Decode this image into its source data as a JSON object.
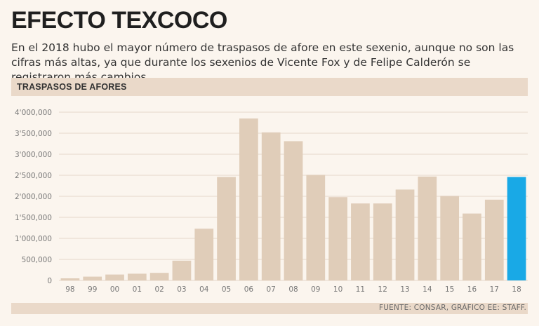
{
  "header": {
    "title": "EFECTO TEXCOCO",
    "subtitle": "En el 2018 hubo el mayor número de traspasos de afore en este sexenio, aunque no son las cifras más altas, ya que durante los sexenios de Vicente Fox y de Felipe Calderón se registraron más cambios."
  },
  "section": {
    "label": "TRASPASOS DE AFORES"
  },
  "footer": {
    "source": "FUENTE: CONSAR, GRÁFICO EE: STAFF."
  },
  "colors": {
    "bar": "#e0cdb9",
    "highlight": "#19a9e6",
    "grid": "#e5d7c9",
    "background": "#fbf5ee"
  },
  "chart_data": {
    "type": "bar",
    "title": "TRASPASOS DE AFORES",
    "categories": [
      "98",
      "99",
      "00",
      "01",
      "02",
      "03",
      "04",
      "05",
      "06",
      "07",
      "08",
      "09",
      "10",
      "11",
      "12",
      "13",
      "14",
      "15",
      "16",
      "17",
      "18"
    ],
    "values": [
      50000,
      90000,
      140000,
      160000,
      180000,
      470000,
      1230000,
      2460000,
      3850000,
      3520000,
      3310000,
      2510000,
      1980000,
      1830000,
      1830000,
      2160000,
      2470000,
      2010000,
      1590000,
      1920000,
      2460000
    ],
    "highlight_index": 20,
    "ylim": [
      0,
      4000000
    ],
    "yticks": [
      0,
      500000,
      1000000,
      1500000,
      2000000,
      2500000,
      3000000,
      3500000,
      4000000
    ],
    "ytick_labels": [
      "0",
      "500,000",
      "1'000,000",
      "1'500,000",
      "2'000,000",
      "2'500,000",
      "3'000,000",
      "3'500,000",
      "4'000,000"
    ],
    "xlabel": "",
    "ylabel": ""
  }
}
